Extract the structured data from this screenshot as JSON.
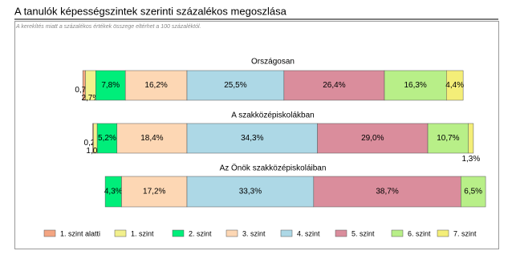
{
  "chart_data": {
    "type": "bar",
    "orientation": "horizontal",
    "stacked": true,
    "title": "A tanulók képességszintek szerinti százalékos megoszlása",
    "subtitle": "A kerekítés miatt a százalékos értékek összege eltérhet a 100 százaléktól.",
    "categories": [
      "Országosan",
      "A szakközépiskolákban",
      "Az Önök szakközépiskoláiban"
    ],
    "series": [
      {
        "name": "1. szint alatti",
        "color": "#f4a582",
        "values": [
          0.7,
          0.2,
          null
        ],
        "value_labels": [
          "0,7%",
          "0,2%",
          null
        ]
      },
      {
        "name": "1. szint",
        "color": "#f2f08c",
        "values": [
          2.7,
          1.0,
          null
        ],
        "value_labels": [
          "2,7%",
          "1,0%",
          null
        ]
      },
      {
        "name": "2. szint",
        "color": "#00ee7a",
        "values": [
          7.8,
          5.2,
          4.3
        ],
        "value_labels": [
          "7,8%",
          "5,2%",
          "4,3%"
        ]
      },
      {
        "name": "3. szint",
        "color": "#fdd7b4",
        "values": [
          16.2,
          18.4,
          17.2
        ],
        "value_labels": [
          "16,2%",
          "18,4%",
          "17,2%"
        ]
      },
      {
        "name": "4. szint",
        "color": "#add8e6",
        "values": [
          25.5,
          34.3,
          33.3
        ],
        "value_labels": [
          "25,5%",
          "34,3%",
          "33,3%"
        ]
      },
      {
        "name": "5. szint",
        "color": "#da8d9c",
        "values": [
          26.4,
          29.0,
          38.7
        ],
        "value_labels": [
          "26,4%",
          "29,0%",
          "38,7%"
        ]
      },
      {
        "name": "6. szint",
        "color": "#b8ef88",
        "values": [
          16.3,
          10.7,
          6.5
        ],
        "value_labels": [
          "16,3%",
          "10,7%",
          "6,5%"
        ]
      },
      {
        "name": "7. szint",
        "color": "#f4ee78",
        "values": [
          4.4,
          1.3,
          null
        ],
        "value_labels": [
          "4,4%",
          "1,3%",
          null
        ]
      }
    ]
  }
}
